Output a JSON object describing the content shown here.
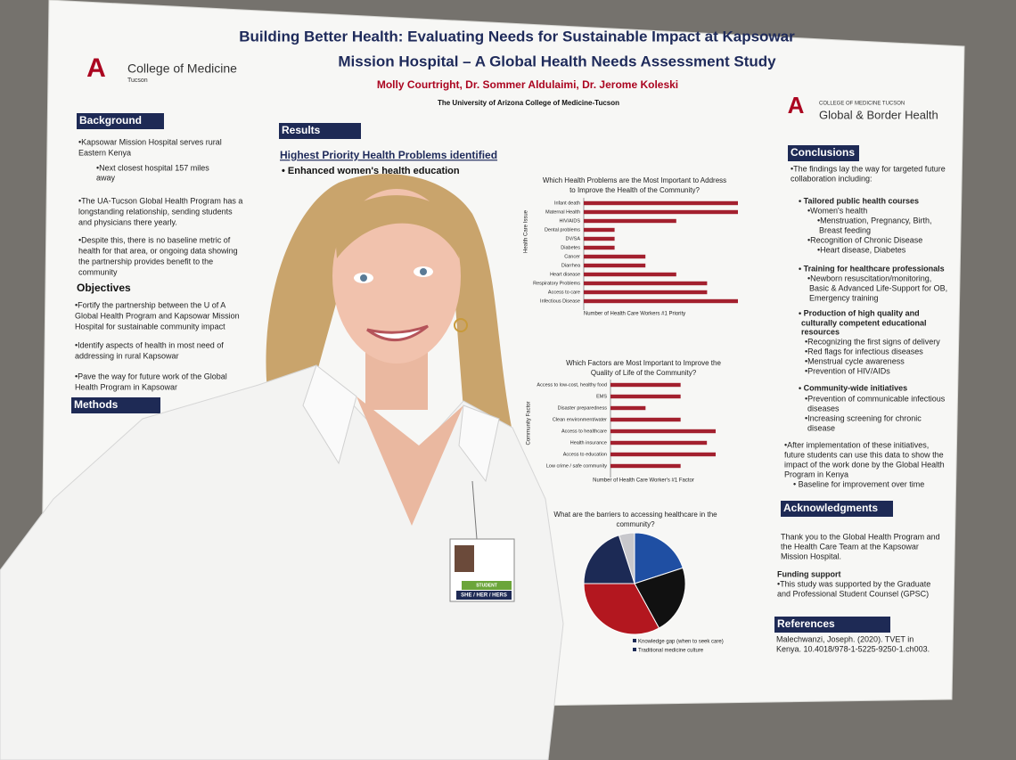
{
  "poster": {
    "title_line1": "Building Better Health: Evaluating Needs for Sustainable Impact at Kapsowar",
    "title_line2": "Mission Hospital – A Global Health Needs Assessment Study",
    "authors": "Molly Courtright, Dr. Sommer Aldulaimi, Dr. Jerome Koleski",
    "affiliation": "The University of Arizona College of Medicine-Tucson",
    "logo_left": {
      "letter": "A",
      "name": "College of Medicine",
      "sub": "Tucson"
    },
    "logo_right": {
      "letter": "A",
      "sub": "COLLEGE OF MEDICINE TUCSON",
      "name": "Global & Border Health"
    },
    "background": {
      "heading": "Background",
      "lines": [
        "•Kapsowar Mission Hospital serves rural",
        "Eastern Kenya",
        "•Next closest hospital 157 miles",
        "away",
        "•The UA-Tucson Global Health Program has a",
        "longstanding relationship, sending students",
        "and physicians there yearly.",
        "•Despite this, there is no baseline metric of",
        "health for that area, or ongoing data showing",
        "the partnership provides benefit to the",
        "community"
      ]
    },
    "objectives": {
      "heading": "Objectives",
      "lines": [
        "•Fortify the partnership between the U of A",
        "Global Health Program and Kapsowar Mission",
        "Hospital for sustainable community impact",
        "•Identify aspects of health in most need of",
        "addressing in rural Kapsowar",
        "•Pave the way for future work of the Global",
        "Health Program in Kapsowar"
      ]
    },
    "methods": {
      "heading": "Methods"
    },
    "results": {
      "heading": "Results",
      "subheading": "Highest Priority Health Problems identified",
      "point": "• Enhanced women's health education",
      "chart1": {
        "type": "bar",
        "title": [
          "Which Health Problems are the Most Important to Address",
          "to Improve the Health of the Community?"
        ],
        "y_label": "Health Care Issue",
        "x_label": "Number of Health Care Workers #1 Priority",
        "categories": [
          "Infant death",
          "Maternal Health",
          "HIV/AIDS",
          "Dental problems",
          "DV/SA",
          "Diabetes",
          "Cancer",
          "Diarrhea",
          "Heart disease",
          "Respiratory Problems",
          "Access to care",
          "Infectious Disease"
        ],
        "values": [
          5,
          5,
          3,
          1,
          1,
          1,
          2,
          2,
          3,
          4,
          4,
          5
        ],
        "xlim": [
          0,
          5
        ],
        "color": "#a3202e"
      },
      "chart2": {
        "type": "bar",
        "title": [
          "Which Factors are Most Important to Improve the",
          "Quality of Life of the Community?"
        ],
        "y_label": "Community Factor",
        "x_label": "Number of Health Care Worker's #1 Factor",
        "categories": [
          "Access to low-cost, healthy food",
          "EMS",
          "Disaster preparedness",
          "Clean environment/water",
          "Access to healthcare",
          "Health insurance",
          "Access to education",
          "Low crime / safe community"
        ],
        "values": [
          4,
          4,
          2,
          4,
          6,
          5.5,
          6,
          4
        ],
        "xlim": [
          0,
          6
        ],
        "color": "#a3202e"
      },
      "chart3": {
        "type": "pie",
        "title": [
          "What are the barriers to accessing healthcare in the",
          "community?"
        ],
        "values": [
          5,
          20,
          22,
          33,
          20
        ],
        "colors": [
          "#c8c8cc",
          "#1f4fa3",
          "#111111",
          "#b3171f",
          "#1c2a55"
        ],
        "legend": [
          "Knowledge gap (when to seek care)",
          "Traditional medicine culture"
        ]
      }
    },
    "conclusions": {
      "heading": "Conclusions",
      "lines": [
        "•The findings lay the way for targeted future",
        "collaboration including:",
        "• Tailored public health courses",
        "•Women's health",
        "•Menstruation, Pregnancy, Birth,",
        "Breast feeding",
        "•Recognition of Chronic Disease",
        "•Heart disease, Diabetes",
        "• Training for healthcare professionals",
        "•Newborn resuscitation/monitoring,",
        "Basic & Advanced Life-Support for OB,",
        "Emergency training",
        "• Production of high quality and",
        "culturally competent educational",
        "resources",
        "•Recognizing the first signs of delivery",
        "•Red flags for infectious diseases",
        "•Menstrual cycle awareness",
        "•Prevention of HIV/AIDs",
        "• Community-wide initiatives",
        "•Prevention of communicable infectious",
        "diseases",
        "•Increasing screening for chronic",
        "disease",
        "•After implementation of these initiatives,",
        "future students can use this data to show the",
        "impact of the work done by the Global Health",
        "Program in Kenya",
        "• Baseline for improvement over time"
      ]
    },
    "acknowledgments": {
      "heading": "Acknowledgments",
      "lines": [
        "Thank you to the Global Health Program and",
        "the Health Care Team at the Kapsowar",
        "Mission Hospital.",
        "Funding support",
        "•This study was supported by the Graduate",
        "and Professional Student Counsel (GPSC)"
      ]
    },
    "references": {
      "heading": "References",
      "lines": [
        "Malechwanzi, Joseph. (2020). TVET in",
        "Kenya. 10.4018/978-1-5225-9250-1.ch003."
      ]
    }
  },
  "badge": {
    "role": "STUDENT",
    "pronouns": "SHE / HER / HERS"
  }
}
